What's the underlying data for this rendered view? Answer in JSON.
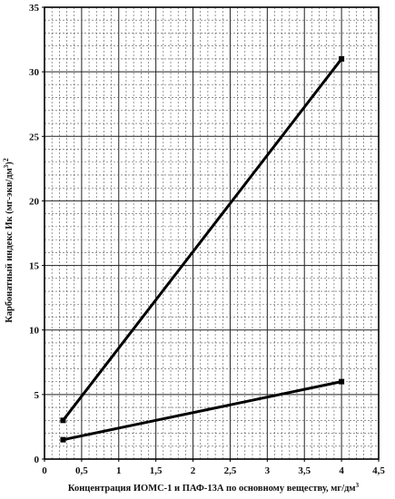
{
  "chart_data": {
    "type": "line",
    "xlabel": "Концентрация ИОМС-1 и ПАФ-13А  по основному веществу, мг/дм",
    "xlabel_sup": "3",
    "ylabel": "Карбонатный индекс Ик (мг-экв/дм",
    "ylabel_sup": "3",
    "ylabel_end": ")",
    "ylabel_sup2": "2",
    "xlim": [
      0,
      4.5
    ],
    "ylim": [
      0,
      35
    ],
    "x_ticks": [
      0,
      0.5,
      1,
      1.5,
      2,
      2.5,
      3,
      3.5,
      4,
      4.5
    ],
    "x_tick_labels": [
      "0",
      "0,5",
      "1",
      "1,5",
      "2",
      "2,5",
      "3",
      "3,5",
      "4",
      "4,5"
    ],
    "y_ticks": [
      0,
      5,
      10,
      15,
      20,
      25,
      30,
      35
    ],
    "y_tick_labels": [
      "0",
      "5",
      "10",
      "15",
      "20",
      "25",
      "30",
      "35"
    ],
    "grid": true,
    "legend": "none",
    "series": [
      {
        "x": [
          0.25,
          4
        ],
        "y": [
          3,
          31
        ],
        "color": "#000000",
        "marker": "square"
      },
      {
        "x": [
          0.25,
          4
        ],
        "y": [
          1.5,
          6
        ],
        "color": "#000000",
        "marker": "square"
      }
    ]
  }
}
